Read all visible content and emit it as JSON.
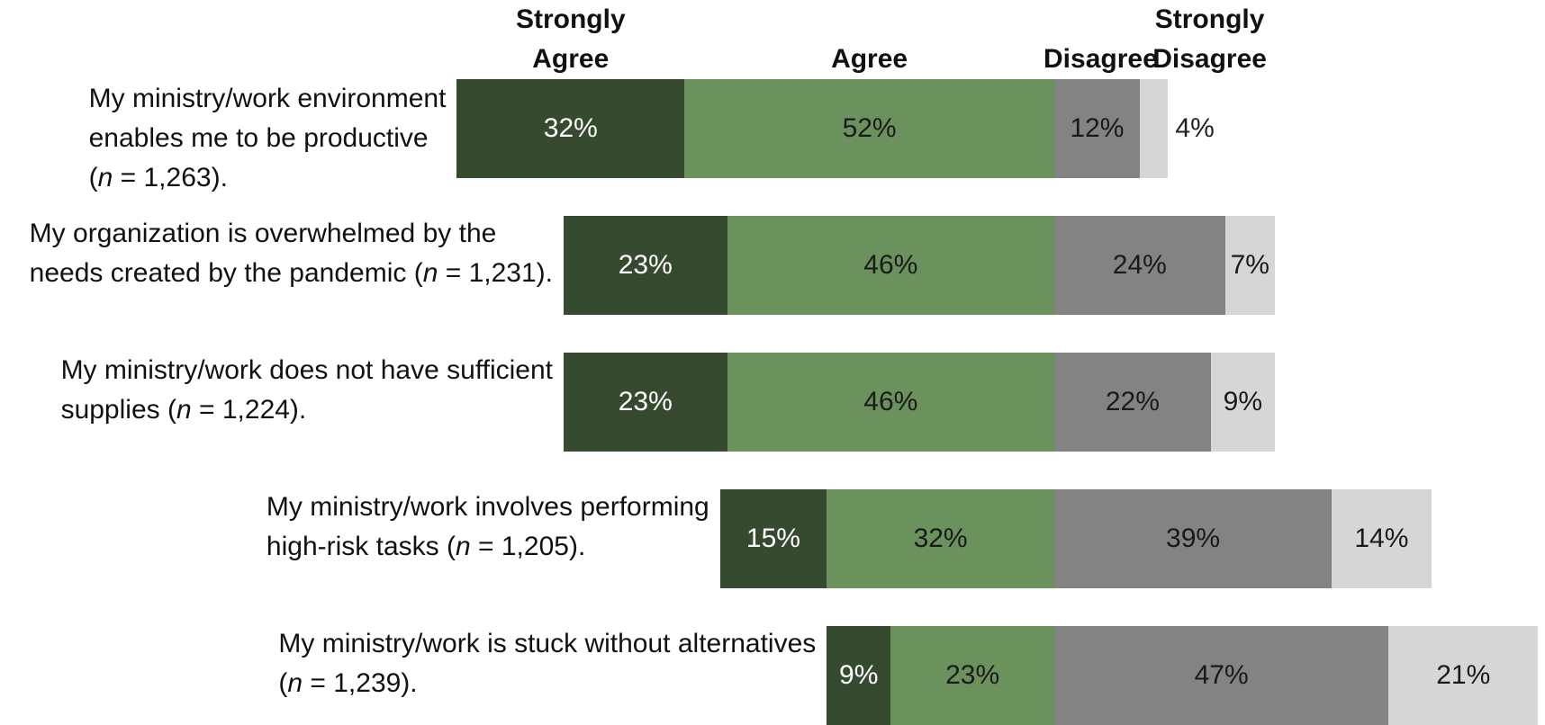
{
  "chart_data": {
    "type": "bar",
    "orientation": "horizontal",
    "stacked": "diverging",
    "categories": [
      {
        "text": "My ministry/work environment enables me to be productive",
        "n_prefix": "(",
        "n_text": "n",
        "n_value": " = 1,263)."
      },
      {
        "text": "My organization is overwhelmed by the needs created by the pandemic",
        "n_prefix": "(",
        "n_text": "n",
        "n_value": " = 1,231)."
      },
      {
        "text": "My ministry/work does not have sufficient supplies",
        "n_prefix": " (",
        "n_text": "n",
        "n_value": " = 1,224)."
      },
      {
        "text": "My ministry/work involves performing high-risk tasks",
        "n_prefix": " (",
        "n_text": "n",
        "n_value": " = 1,205)."
      },
      {
        "text": "My ministry/work is stuck without alternatives",
        "n_prefix": " (",
        "n_text": "n",
        "n_value": " = 1,239)."
      }
    ],
    "series": [
      {
        "name": "Strongly Agree",
        "color": "#364a2f",
        "text_color": "#ffffff",
        "values": [
          32,
          23,
          23,
          15,
          9
        ],
        "labels": [
          "32%",
          "23%",
          "23%",
          "15%",
          "9%"
        ]
      },
      {
        "name": "Agree",
        "color": "#6b915c",
        "text_color": "#1a1a1a",
        "values": [
          52,
          46,
          46,
          32,
          23
        ],
        "labels": [
          "52%",
          "46%",
          "46%",
          "32%",
          "23%"
        ]
      },
      {
        "name": "Disagree",
        "color": "#838383",
        "text_color": "#1a1a1a",
        "values": [
          12,
          24,
          22,
          39,
          47
        ],
        "labels": [
          "12%",
          "24%",
          "22%",
          "39%",
          "47%"
        ]
      },
      {
        "name": "Strongly Disagree",
        "color": "#d6d6d6",
        "text_color": "#1a1a1a",
        "values": [
          4,
          7,
          9,
          14,
          21
        ],
        "labels": [
          "4%",
          "7%",
          "9%",
          "14%",
          "21%"
        ]
      }
    ],
    "headers": [
      {
        "line1": "Strongly",
        "line2": "Agree"
      },
      {
        "line1": "",
        "line2": "Agree"
      },
      {
        "line1": "",
        "line2": "Disagree"
      },
      {
        "line1": "Strongly",
        "line2": "Disagree"
      }
    ],
    "legend": "top",
    "grid": false
  }
}
